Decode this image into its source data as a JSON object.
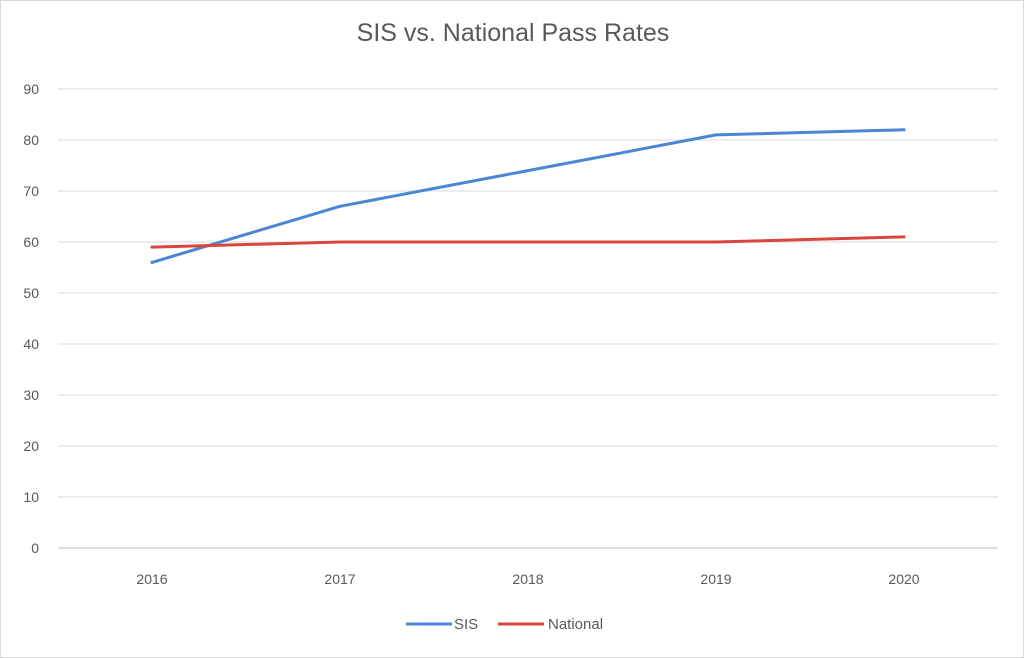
{
  "chart_data": {
    "type": "line",
    "title": "SIS vs. National Pass Rates",
    "xlabel": "",
    "ylabel": "",
    "x": [
      "2016",
      "2017",
      "2018",
      "2019",
      "2020"
    ],
    "ylim": [
      0,
      90
    ],
    "yticks": [
      0,
      10,
      20,
      30,
      40,
      50,
      60,
      70,
      80,
      90
    ],
    "grid": true,
    "legend_position": "bottom",
    "series": [
      {
        "name": "SIS",
        "color": "#4a86d4",
        "values": [
          56,
          67,
          74,
          81,
          82
        ]
      },
      {
        "name": "National",
        "color": "#d9463e",
        "values": [
          59,
          60,
          60,
          60,
          61
        ]
      }
    ]
  }
}
